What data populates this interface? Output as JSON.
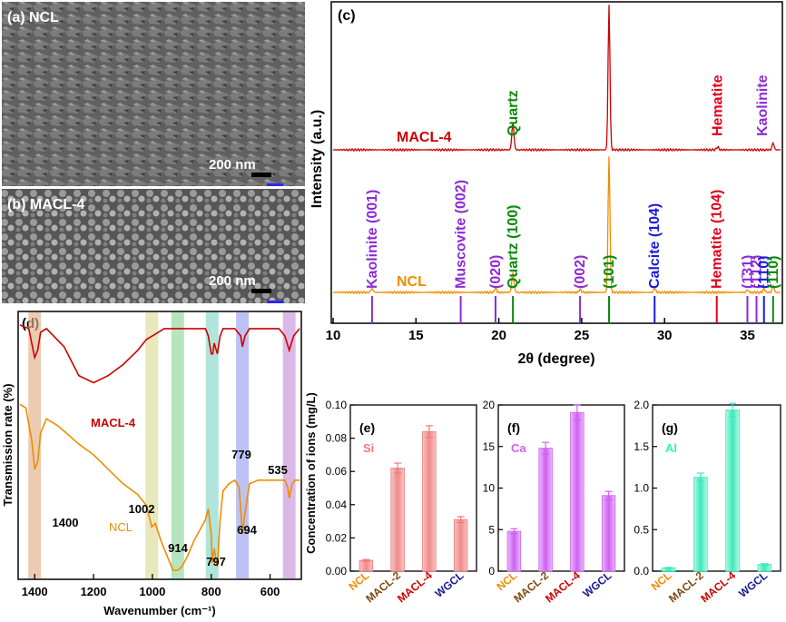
{
  "colors": {
    "macl": "#cc0000",
    "ncl": "#f08c00",
    "quartz": "#0a8a0a",
    "kaolinite": "#8e2ad6",
    "hematite": "#e3001b",
    "calcite": "#1a1adf",
    "sem_dark": "#3c3c3c",
    "si_bar": "#f29a9a",
    "ca_bar": "#d679f5",
    "al_bar": "#5ef0c8",
    "ncl_tick": "#f08c00",
    "macl2_tick": "#7a4a12",
    "macl4_tick": "#d00000",
    "wgcl_tick": "#1a1a8f"
  },
  "sem": {
    "a_label": "(a) NCL",
    "a_scale": "200 nm",
    "b_label": "(b) MACL-4",
    "b_scale": "200 nm"
  },
  "xrd": {
    "panel_label": "(c)",
    "ylabel": "Intensity (a.u.)",
    "xlabel": "2θ (degree)",
    "xlim": [
      10,
      37
    ],
    "xticks": [
      10,
      15,
      20,
      25,
      30,
      35
    ],
    "series_labels": {
      "macl": "MACL-4",
      "ncl": "NCL"
    },
    "top_annotations": [
      {
        "text": "Quartz",
        "x": 20.85,
        "color_key": "quartz"
      },
      {
        "text": "Hematite",
        "x": 33.2,
        "color_key": "hematite"
      },
      {
        "text": "Kaolinite",
        "x": 35.9,
        "color_key": "kaolinite"
      }
    ],
    "reference_annotations": [
      {
        "text": "Kaolinite (001)",
        "x": 12.35,
        "color_key": "kaolinite"
      },
      {
        "text": "Muscovite (002)",
        "x": 17.7,
        "color_key": "kaolinite"
      },
      {
        "text": "(020)",
        "x": 19.8,
        "color_key": "kaolinite"
      },
      {
        "text": "Quartz (100)",
        "x": 20.85,
        "color_key": "quartz"
      },
      {
        "text": "(002)",
        "x": 24.9,
        "color_key": "kaolinite"
      },
      {
        "text": "(101)",
        "x": 26.65,
        "color_key": "quartz"
      },
      {
        "text": "Calcite (104)",
        "x": 29.4,
        "color_key": "calcite"
      },
      {
        "text": "Hematite (104)",
        "x": 33.15,
        "color_key": "hematite"
      },
      {
        "text": "(1̄31)",
        "x": 35.0,
        "color_key": "kaolinite"
      },
      {
        "text": "(1̄12)",
        "x": 35.55,
        "color_key": "kaolinite"
      },
      {
        "text": "(110)",
        "x": 36.0,
        "color_key": "calcite"
      },
      {
        "text": "(110)",
        "x": 36.55,
        "color_key": "quartz"
      }
    ]
  },
  "chart_data": [
    {
      "type": "line",
      "panel": "(d)",
      "xlabel": "Wavenumber (cm⁻¹)",
      "ylabel": "Transmission rate (%)",
      "xlim": [
        1450,
        500
      ],
      "xticks": [
        1400,
        1200,
        1000,
        800,
        600
      ],
      "series": [
        {
          "name": "MACL-4",
          "x": [
            1450,
            1420,
            1400,
            1390,
            1380,
            1360,
            1300,
            1250,
            1200,
            1150,
            1100,
            1050,
            1020,
            1000,
            960,
            930,
            915,
            900,
            880,
            860,
            840,
            820,
            810,
            800,
            795,
            790,
            779,
            770,
            760,
            740,
            720,
            700,
            694,
            685,
            670,
            640,
            600,
            570,
            550,
            535,
            520,
            500
          ],
          "y": [
            70,
            69,
            61,
            63,
            68,
            69,
            64,
            56,
            54,
            56,
            59,
            63,
            66,
            67,
            69,
            69,
            69,
            69,
            69,
            69,
            69,
            69,
            67,
            62,
            62,
            65,
            62,
            67,
            69,
            69,
            69,
            67,
            64,
            67,
            69,
            69,
            69,
            69,
            67,
            63,
            67,
            69
          ]
        },
        {
          "name": "NCL",
          "x": [
            1450,
            1430,
            1410,
            1400,
            1390,
            1380,
            1360,
            1320,
            1250,
            1200,
            1150,
            1100,
            1050,
            1020,
            1002,
            990,
            970,
            950,
            930,
            914,
            900,
            880,
            860,
            840,
            820,
            810,
            800,
            797,
            790,
            779,
            770,
            760,
            740,
            720,
            705,
            694,
            685,
            670,
            640,
            600,
            570,
            550,
            540,
            535,
            525,
            515,
            500
          ],
          "y": [
            48,
            47,
            38,
            30,
            32,
            40,
            44,
            42,
            37,
            34,
            30,
            26,
            23,
            20,
            14,
            15,
            10,
            6,
            2,
            2,
            3,
            6,
            10,
            13,
            16,
            19,
            12,
            4,
            8,
            3,
            16,
            24,
            26,
            27,
            25,
            12,
            18,
            26,
            27,
            27,
            27,
            27,
            25,
            22,
            26,
            27,
            27
          ]
        }
      ],
      "bands": [
        1400,
        1002,
        914,
        797,
        694,
        535
      ],
      "annotations": [
        {
          "text": "1400",
          "x": 1400
        },
        {
          "text": "1002",
          "x": 1002
        },
        {
          "text": "914",
          "x": 914
        },
        {
          "text": "779",
          "x": 779
        },
        {
          "text": "797",
          "x": 797
        },
        {
          "text": "694",
          "x": 694
        },
        {
          "text": "535",
          "x": 535
        }
      ]
    },
    {
      "type": "bar",
      "panel": "(e)",
      "element": "Si",
      "ylabel": "Concentration of ions (mg/L)",
      "categories": [
        "NCL",
        "MACL-2",
        "MACL-4",
        "WGCL"
      ],
      "values": [
        0.0065,
        0.062,
        0.084,
        0.031
      ],
      "errors": [
        0.0005,
        0.003,
        0.0035,
        0.0018
      ],
      "ylim": [
        0,
        0.1
      ],
      "yticks": [
        "0.00",
        "0.02",
        "0.04",
        "0.06",
        "0.08",
        "0.10"
      ],
      "ytick_values": [
        0,
        0.02,
        0.04,
        0.06,
        0.08,
        0.1
      ]
    },
    {
      "type": "bar",
      "panel": "(f)",
      "element": "Ca",
      "categories": [
        "NCL",
        "MACL-2",
        "MACL-4",
        "WGCL"
      ],
      "values": [
        4.8,
        14.8,
        19.1,
        9.1
      ],
      "errors": [
        0.3,
        0.7,
        0.9,
        0.5
      ],
      "ylim": [
        0,
        20
      ],
      "yticks": [
        "0",
        "5",
        "10",
        "15",
        "20"
      ],
      "ytick_values": [
        0,
        5,
        10,
        15,
        20
      ]
    },
    {
      "type": "bar",
      "panel": "(g)",
      "element": "Al",
      "categories": [
        "NCL",
        "MACL-2",
        "MACL-4",
        "WGCL"
      ],
      "values": [
        0.04,
        1.13,
        1.94,
        0.08
      ],
      "errors": [
        0.005,
        0.05,
        0.08,
        0.01
      ],
      "ylim": [
        0,
        2.0
      ],
      "yticks": [
        "0.0",
        "0.5",
        "1.0",
        "1.5",
        "2.0"
      ],
      "ytick_values": [
        0,
        0.5,
        1.0,
        1.5,
        2.0
      ]
    }
  ]
}
